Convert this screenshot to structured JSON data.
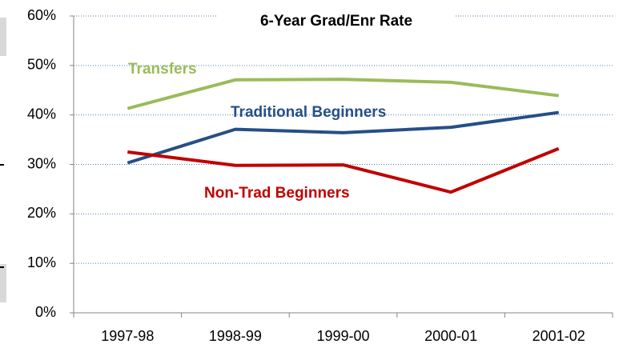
{
  "chart_data": {
    "type": "line",
    "title": "6-Year Grad/Enr Rate",
    "categories": [
      "1997-98",
      "1998-99",
      "1999-00",
      "2000-01",
      "2001-02"
    ],
    "series": [
      {
        "name": "Transfers",
        "color": "#9bbb59",
        "values": [
          41.3,
          47.1,
          47.2,
          46.6,
          43.9
        ]
      },
      {
        "name": "Traditional Beginners",
        "color": "#254f86",
        "values": [
          30.3,
          37.1,
          36.4,
          37.5,
          40.5
        ]
      },
      {
        "name": "Non-Trad Beginners",
        "color": "#c00000",
        "values": [
          32.5,
          29.8,
          29.9,
          24.4,
          33.2
        ]
      }
    ],
    "ylim": [
      0,
      60
    ],
    "yticks": [
      {
        "value": 0,
        "label": "0%"
      },
      {
        "value": 10,
        "label": "10%"
      },
      {
        "value": 20,
        "label": "20%"
      },
      {
        "value": 30,
        "label": "30%"
      },
      {
        "value": 40,
        "label": "40%"
      },
      {
        "value": 50,
        "label": "50%"
      },
      {
        "value": 60,
        "label": "60%"
      }
    ],
    "grid": true
  }
}
